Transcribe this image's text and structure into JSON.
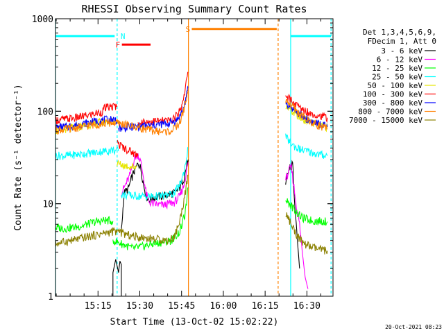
{
  "chart_data": {
    "type": "line",
    "title": "RHESSI Observing Summary Count Rates",
    "xlabel": "Start Time (13-Oct-02 15:02:22)",
    "ylabel": "Count Rate (s⁻¹ detector⁻¹)",
    "yscale": "log",
    "ylim": [
      1,
      1000
    ],
    "xlim_min": [
      2.37,
      102.0
    ],
    "x_ticks": [
      {
        "min": 17.63,
        "label": "15:15"
      },
      {
        "min": 32.63,
        "label": "15:30"
      },
      {
        "min": 47.63,
        "label": "15:45"
      },
      {
        "min": 62.63,
        "label": "16:00"
      },
      {
        "min": 77.63,
        "label": "16:15"
      },
      {
        "min": 92.63,
        "label": "16:30"
      }
    ],
    "y_ticks": [
      {
        "value": 1,
        "label": "1"
      },
      {
        "value": 10,
        "label": "10"
      },
      {
        "value": 100,
        "label": "100"
      },
      {
        "value": 1000,
        "label": "1000"
      }
    ],
    "legend_position": "top-right",
    "legend_header": [
      "Det 1,3,4,5,6,9,",
      "FDecim 1, Att 0"
    ],
    "series": [
      {
        "name": "3 - 6 keV",
        "color": "#000000",
        "segments": [
          [
            [
              23.0,
              1
            ],
            [
              23.0,
              1.8
            ],
            [
              24.0,
              2.5
            ],
            [
              25.0,
              1.8
            ],
            [
              25.5,
              2.4
            ],
            [
              26.0,
              2.2
            ],
            [
              26.0,
              1
            ]
          ],
          [
            [
              26.0,
              5
            ],
            [
              27.0,
              13
            ],
            [
              28.5,
              14.5
            ],
            [
              29.5,
              18
            ],
            [
              30.5,
              22
            ],
            [
              31.5,
              25
            ],
            [
              32.0,
              28
            ],
            [
              33.0,
              24
            ],
            [
              34.0,
              16
            ],
            [
              35.0,
              12
            ],
            [
              36.0,
              11
            ],
            [
              37.5,
              11.5
            ],
            [
              39.0,
              12
            ],
            [
              41.0,
              12
            ],
            [
              43.0,
              12.5
            ],
            [
              45.0,
              13
            ],
            [
              47.0,
              15
            ],
            [
              48.5,
              19
            ],
            [
              50.0,
              30
            ]
          ],
          [
            [
              85.0,
              15
            ],
            [
              85.5,
              20
            ],
            [
              86.5,
              24
            ],
            [
              87.5,
              27
            ],
            [
              88.0,
              14
            ],
            [
              89.0,
              5
            ],
            [
              90.0,
              2
            ]
          ]
        ]
      },
      {
        "name": "6 - 12 keV",
        "color": "#ff00ff",
        "segments": [
          [
            [
              26.0,
              13
            ],
            [
              27.5,
              16
            ],
            [
              29.0,
              20
            ],
            [
              30.0,
              26
            ],
            [
              31.0,
              32
            ],
            [
              32.0,
              34
            ],
            [
              33.0,
              28
            ],
            [
              34.0,
              19
            ],
            [
              35.0,
              12.5
            ],
            [
              36.0,
              10.5
            ],
            [
              37.0,
              10
            ],
            [
              39.0,
              9.8
            ],
            [
              41.0,
              9.6
            ],
            [
              43.0,
              10
            ],
            [
              45.0,
              10.3
            ],
            [
              47.0,
              12
            ],
            [
              48.5,
              16
            ],
            [
              50.0,
              28
            ]
          ],
          [
            [
              85.0,
              18
            ],
            [
              86.0,
              22
            ],
            [
              87.0,
              25
            ],
            [
              88.0,
              15
            ],
            [
              89.0,
              9
            ],
            [
              90.0,
              6
            ],
            [
              91.0,
              3
            ],
            [
              92.0,
              1.6
            ],
            [
              93.0,
              1.2
            ]
          ]
        ]
      },
      {
        "name": "12 - 25 keV",
        "color": "#00ff00",
        "segments": [
          [
            [
              2.4,
              5.5
            ],
            [
              6.0,
              5.4
            ],
            [
              10.0,
              5.6
            ],
            [
              14.0,
              6
            ],
            [
              17.0,
              6.4
            ],
            [
              20.0,
              6.6
            ],
            [
              23.0,
              6.5
            ]
          ],
          [
            [
              23.0,
              4
            ],
            [
              27.0,
              3.6
            ],
            [
              30.0,
              3.3
            ],
            [
              33.0,
              3.4
            ],
            [
              36.0,
              3.6
            ],
            [
              40.0,
              3.8
            ],
            [
              44.0,
              4
            ],
            [
              47.0,
              5
            ],
            [
              49.0,
              8
            ],
            [
              50.0,
              15
            ]
          ],
          [
            [
              85.0,
              11
            ],
            [
              87.0,
              9.5
            ],
            [
              89.0,
              8
            ],
            [
              91.0,
              7
            ],
            [
              95.0,
              6.5
            ],
            [
              100.0,
              6.4
            ]
          ]
        ]
      },
      {
        "name": "25 - 50 keV",
        "color": "#00ffff",
        "segments": [
          [
            [
              2.4,
              33
            ],
            [
              6.0,
              33
            ],
            [
              10.0,
              34
            ],
            [
              14.0,
              35
            ],
            [
              17.0,
              36
            ],
            [
              20.0,
              37
            ],
            [
              23.0,
              38
            ],
            [
              25.0,
              37
            ]
          ],
          [
            [
              26.0,
              12.5
            ],
            [
              30.0,
              12.2
            ],
            [
              34.0,
              12
            ],
            [
              38.0,
              12
            ],
            [
              42.0,
              12.2
            ],
            [
              45.0,
              13
            ],
            [
              47.0,
              16
            ],
            [
              48.5,
              22
            ],
            [
              50.0,
              40
            ]
          ],
          [
            [
              85.0,
              52
            ],
            [
              87.0,
              45
            ],
            [
              89.0,
              40
            ],
            [
              91.0,
              38
            ],
            [
              94.0,
              36
            ],
            [
              97.0,
              34
            ],
            [
              100.0,
              33
            ]
          ]
        ]
      },
      {
        "name": "50 - 100 keV",
        "color": "#e6e600",
        "segments": [
          [
            [
              2.4,
              62
            ],
            [
              6.0,
              64
            ],
            [
              10.0,
              67
            ],
            [
              14.0,
              71
            ],
            [
              17.0,
              74
            ],
            [
              20.0,
              77
            ],
            [
              23.0,
              78
            ],
            [
              24.0,
              78
            ]
          ],
          [
            [
              24.5,
              27
            ],
            [
              27.0,
              26
            ],
            [
              30.0,
              25
            ],
            [
              31.5,
              25
            ]
          ],
          [
            [
              85.0,
              118
            ],
            [
              87.0,
              100
            ],
            [
              89.0,
              90
            ],
            [
              91.0,
              82
            ],
            [
              94.0,
              76
            ],
            [
              97.0,
              70
            ],
            [
              100.0,
              67
            ]
          ]
        ]
      },
      {
        "name": "100 - 300 keV",
        "color": "#ff0000",
        "segments": [
          [
            [
              2.4,
              80
            ],
            [
              6.0,
              82
            ],
            [
              10.0,
              85
            ],
            [
              14.0,
              90
            ],
            [
              17.0,
              95
            ],
            [
              19.0,
              98
            ],
            [
              20.0,
              108
            ],
            [
              23.0,
              112
            ],
            [
              24.5,
              112
            ]
          ],
          [
            [
              24.5,
              45
            ],
            [
              27.0,
              40
            ],
            [
              30.0,
              36
            ],
            [
              32.0,
              33
            ]
          ],
          [
            [
              32.0,
              75
            ],
            [
              35.0,
              77
            ],
            [
              38.0,
              78
            ],
            [
              41.0,
              78
            ],
            [
              44.0,
              80
            ],
            [
              46.0,
              90
            ],
            [
              47.5,
              110
            ],
            [
              48.5,
              150
            ],
            [
              49.5,
              220
            ],
            [
              50.0,
              260
            ]
          ],
          [
            [
              85.0,
              150
            ],
            [
              87.0,
              130
            ],
            [
              89.0,
              115
            ],
            [
              91.0,
              105
            ],
            [
              94.0,
              95
            ],
            [
              97.0,
              90
            ],
            [
              100.0,
              85
            ]
          ]
        ]
      },
      {
        "name": "300 - 800 keV",
        "color": "#0000ff",
        "segments": [
          [
            [
              2.4,
              66
            ],
            [
              6.0,
              68
            ],
            [
              10.0,
              71
            ],
            [
              14.0,
              75
            ],
            [
              17.0,
              78
            ],
            [
              20.0,
              80
            ],
            [
              23.0,
              82
            ],
            [
              24.5,
              80
            ]
          ],
          [
            [
              25.0,
              66
            ],
            [
              28.0,
              67
            ],
            [
              31.0,
              68
            ],
            [
              34.0,
              69
            ],
            [
              37.0,
              70
            ],
            [
              40.0,
              72
            ],
            [
              43.0,
              74
            ],
            [
              46.0,
              80
            ],
            [
              48.0,
              100
            ],
            [
              49.5,
              150
            ],
            [
              50.0,
              180
            ]
          ],
          [
            [
              85.0,
              125
            ],
            [
              87.0,
              110
            ],
            [
              89.0,
              98
            ],
            [
              91.0,
              88
            ],
            [
              94.0,
              78
            ],
            [
              97.0,
              72
            ],
            [
              100.0,
              68
            ]
          ]
        ]
      },
      {
        "name": "800 - 7000 keV",
        "color": "#ff8000",
        "segments": [
          [
            [
              2.4,
              62
            ],
            [
              6.0,
              64
            ],
            [
              10.0,
              66
            ],
            [
              14.0,
              70
            ],
            [
              17.0,
              72
            ],
            [
              20.0,
              74
            ],
            [
              23.0,
              75
            ],
            [
              26.0,
              73
            ],
            [
              29.0,
              70
            ],
            [
              32.0,
              67
            ],
            [
              35.0,
              64
            ],
            [
              38.0,
              61
            ],
            [
              41.0,
              60
            ],
            [
              43.0,
              60
            ],
            [
              45.0,
              64
            ],
            [
              47.0,
              75
            ],
            [
              48.5,
              105
            ],
            [
              50.0,
              170
            ]
          ],
          [
            [
              85.0,
              135
            ],
            [
              87.0,
              115
            ],
            [
              89.0,
              100
            ],
            [
              91.0,
              88
            ],
            [
              94.0,
              76
            ],
            [
              97.0,
              70
            ],
            [
              100.0,
              64
            ]
          ]
        ]
      },
      {
        "name": "7000 - 15000 keV",
        "color": "#8b8000",
        "segments": [
          [
            [
              2.4,
              3.7
            ],
            [
              6.0,
              3.9
            ],
            [
              10.0,
              4.1
            ],
            [
              14.0,
              4.4
            ],
            [
              17.0,
              4.6
            ],
            [
              20.0,
              4.8
            ],
            [
              23.0,
              5.0
            ],
            [
              25.0,
              5.0
            ]
          ],
          [
            [
              25.0,
              5
            ],
            [
              28.0,
              4.6
            ],
            [
              31.0,
              4.4
            ],
            [
              34.0,
              4.3
            ],
            [
              37.0,
              4.2
            ],
            [
              40.0,
              4.1
            ],
            [
              43.0,
              4.0
            ],
            [
              45.0,
              4.4
            ],
            [
              47.0,
              6.5
            ],
            [
              48.5,
              11
            ],
            [
              50.0,
              20
            ]
          ],
          [
            [
              85.0,
              8
            ],
            [
              87.0,
              6
            ],
            [
              89.0,
              4.6
            ],
            [
              91.0,
              3.8
            ],
            [
              94.0,
              3.4
            ],
            [
              97.0,
              3.2
            ],
            [
              100.0,
              3.1
            ]
          ]
        ]
      }
    ],
    "annotations": {
      "vlines": [
        {
          "x": 2.37,
          "color": "#00ffff",
          "style": "solid"
        },
        {
          "x": 24.5,
          "color": "#00ffff",
          "style": "dashed"
        },
        {
          "x": 50.1,
          "color": "#ff8000",
          "style": "solid"
        },
        {
          "x": 82.3,
          "color": "#ff8000",
          "style": "dashed"
        },
        {
          "x": 86.8,
          "color": "#00ffff",
          "style": "solid"
        },
        {
          "x": 101.3,
          "color": "#00ffff",
          "style": "dashed"
        }
      ],
      "bars": [
        {
          "label": "",
          "x0": 2.37,
          "x1": 23.6,
          "y": 650,
          "color": "#00ffff"
        },
        {
          "label": "N",
          "x0": 24.5,
          "x1": 24.5,
          "y": 650,
          "color": "#00ffff"
        },
        {
          "label": "F",
          "x0": 26.2,
          "x1": 36.5,
          "y": 525,
          "color": "#ff0000"
        },
        {
          "label": "S",
          "x0": 51.3,
          "x1": 81.8,
          "y": 775,
          "color": "#ff8000"
        },
        {
          "label": "",
          "x0": 86.8,
          "x1": 101.3,
          "y": 650,
          "color": "#00ffff"
        }
      ]
    }
  },
  "footer": {
    "timestamp": "20-Oct-2021 08:23"
  }
}
